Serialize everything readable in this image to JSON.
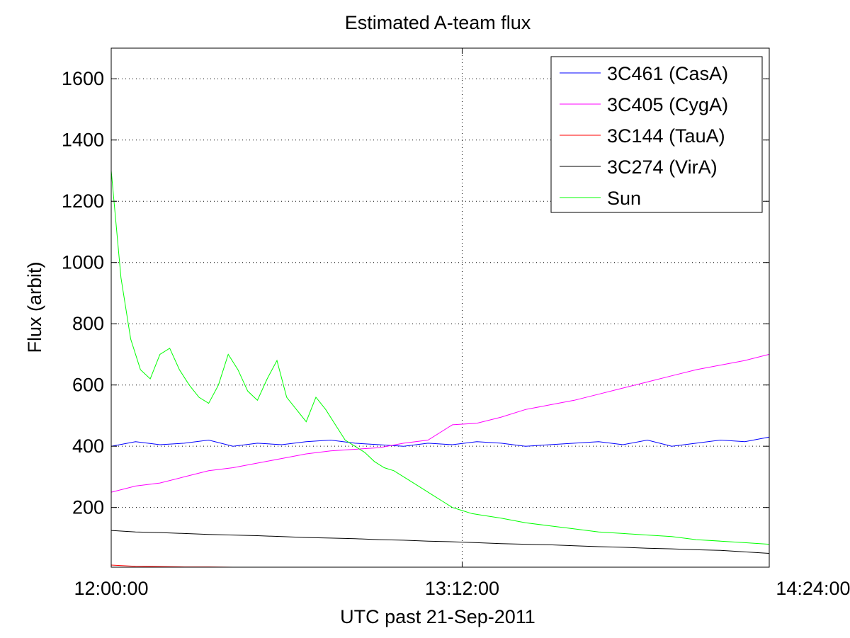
{
  "chart_data": {
    "type": "line",
    "title": "Estimated A-team flux",
    "xlabel": "UTC past 21-Sep-2011",
    "ylabel": "Flux (arbit)",
    "x_unit": "minutes past 12:00:00",
    "xlim": [
      0,
      135
    ],
    "ylim": [
      5,
      1700
    ],
    "x_ticks": [
      {
        "value": 0,
        "label": "12:00:00"
      },
      {
        "value": 72,
        "label": "13:12:00"
      },
      {
        "value": 144,
        "label": "14:24:00"
      }
    ],
    "y_ticks": [
      200,
      400,
      600,
      800,
      1000,
      1200,
      1400,
      1600
    ],
    "grid": true,
    "legend_position": "top-right",
    "series": [
      {
        "name": "3C461 (CasA)",
        "color": "#0000ff",
        "x": [
          0,
          5,
          10,
          15,
          20,
          25,
          30,
          35,
          40,
          45,
          50,
          55,
          60,
          65,
          70,
          75,
          80,
          85,
          90,
          95,
          100,
          105,
          110,
          115,
          120,
          125,
          130,
          135
        ],
        "y": [
          400,
          415,
          405,
          410,
          420,
          400,
          410,
          405,
          415,
          420,
          410,
          405,
          400,
          410,
          405,
          415,
          410,
          400,
          405,
          410,
          415,
          405,
          420,
          400,
          410,
          420,
          415,
          430
        ]
      },
      {
        "name": "3C405 (CygA)",
        "color": "#ff00ff",
        "x": [
          0,
          5,
          10,
          15,
          20,
          25,
          30,
          35,
          40,
          45,
          50,
          55,
          60,
          65,
          70,
          75,
          80,
          85,
          90,
          95,
          100,
          105,
          110,
          115,
          120,
          125,
          130,
          135
        ],
        "y": [
          250,
          270,
          280,
          300,
          320,
          330,
          345,
          360,
          375,
          385,
          390,
          395,
          410,
          420,
          470,
          475,
          495,
          520,
          535,
          550,
          570,
          590,
          610,
          630,
          650,
          665,
          680,
          700
        ]
      },
      {
        "name": "3C144 (TauA)",
        "color": "#ff0000",
        "x": [
          0,
          5,
          10,
          15,
          20,
          25,
          30,
          35,
          40
        ],
        "y": [
          12,
          8,
          7,
          6,
          6,
          5,
          5,
          5,
          5
        ]
      },
      {
        "name": "3C274 (VirA)",
        "color": "#000000",
        "x": [
          0,
          5,
          10,
          15,
          20,
          25,
          30,
          35,
          40,
          45,
          50,
          55,
          60,
          65,
          70,
          75,
          80,
          85,
          90,
          95,
          100,
          105,
          110,
          115,
          120,
          125,
          130,
          135
        ],
        "y": [
          125,
          120,
          118,
          115,
          112,
          110,
          108,
          105,
          102,
          100,
          98,
          95,
          93,
          90,
          88,
          85,
          82,
          80,
          78,
          75,
          72,
          70,
          67,
          65,
          62,
          60,
          55,
          50
        ]
      },
      {
        "name": "Sun",
        "color": "#00ff00",
        "x": [
          0,
          2,
          4,
          6,
          8,
          10,
          12,
          14,
          16,
          18,
          20,
          22,
          24,
          26,
          28,
          30,
          32,
          34,
          36,
          38,
          40,
          42,
          44,
          46,
          48,
          50,
          52,
          54,
          56,
          58,
          60,
          62,
          64,
          66,
          68,
          70,
          72,
          74,
          76,
          78,
          80,
          85,
          90,
          95,
          100,
          105,
          110,
          115,
          120,
          125,
          130,
          135
        ],
        "y": [
          1300,
          950,
          750,
          650,
          620,
          700,
          720,
          650,
          600,
          560,
          540,
          600,
          700,
          650,
          580,
          550,
          620,
          680,
          560,
          520,
          480,
          560,
          520,
          470,
          420,
          400,
          380,
          350,
          330,
          320,
          300,
          280,
          260,
          240,
          220,
          200,
          190,
          180,
          175,
          170,
          165,
          150,
          140,
          130,
          120,
          115,
          110,
          105,
          95,
          90,
          85,
          80
        ]
      }
    ],
    "annotations": []
  }
}
